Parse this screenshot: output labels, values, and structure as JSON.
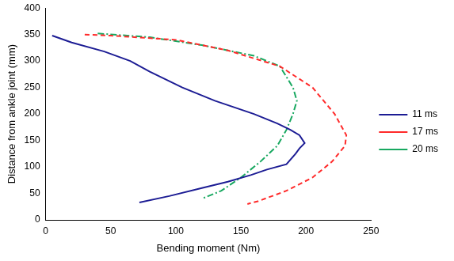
{
  "chart_data": {
    "type": "line",
    "x_label": "Bending moment (Nm)",
    "y_label": "Distance from ankle joint (mm)",
    "xlim": [
      0,
      250
    ],
    "xticks": [
      0,
      50,
      100,
      150,
      200,
      250
    ],
    "ylim": [
      0,
      400
    ],
    "yticks": [
      0,
      50,
      100,
      150,
      200,
      250,
      300,
      350,
      400
    ],
    "grid": false,
    "legend": "right",
    "series": [
      {
        "name": "11 ms",
        "color": "#1c1c94",
        "line_style": "solid",
        "x": [
          5,
          20,
          45,
          65,
          80,
          105,
          130,
          160,
          178,
          188,
          195,
          199,
          195,
          192,
          185,
          170,
          158,
          140,
          120,
          95,
          72
        ],
        "values": [
          348,
          335,
          318,
          300,
          280,
          250,
          225,
          200,
          182,
          170,
          160,
          145,
          135,
          125,
          105,
          95,
          85,
          72,
          60,
          45,
          33
        ]
      },
      {
        "name": "17 ms",
        "color": "#ff2a2a",
        "line_style": "dashed",
        "x": [
          30,
          50,
          100,
          140,
          180,
          205,
          222,
          231,
          230,
          220,
          205,
          185,
          163,
          155
        ],
        "values": [
          350,
          348,
          340,
          320,
          290,
          250,
          200,
          160,
          140,
          110,
          80,
          55,
          35,
          30
        ]
      },
      {
        "name": "20 ms",
        "color": "#18a860",
        "line_style": "dashdot",
        "x": [
          40,
          80,
          120,
          160,
          180,
          190,
          193,
          190,
          185,
          178,
          165,
          150,
          135,
          120
        ],
        "values": [
          352,
          345,
          330,
          310,
          290,
          250,
          225,
          200,
          170,
          140,
          110,
          80,
          55,
          40
        ]
      }
    ]
  }
}
